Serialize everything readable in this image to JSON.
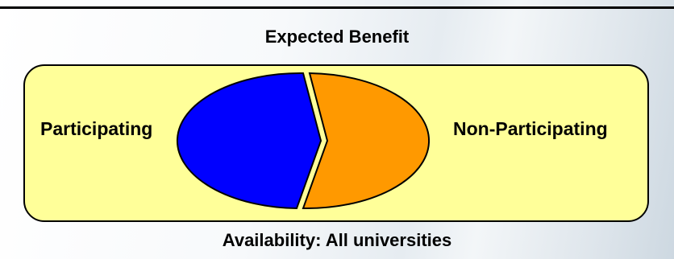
{
  "chart_data": {
    "type": "pie",
    "title": "Expected Benefit",
    "categories": [
      "Participating",
      "Non-Participating"
    ],
    "values": [
      46,
      54
    ],
    "colors": [
      "#0000ff",
      "#ff9900"
    ],
    "separator_color": "#ffff99",
    "panel_color": "#ffff99",
    "footer": "Availability: All universities"
  }
}
